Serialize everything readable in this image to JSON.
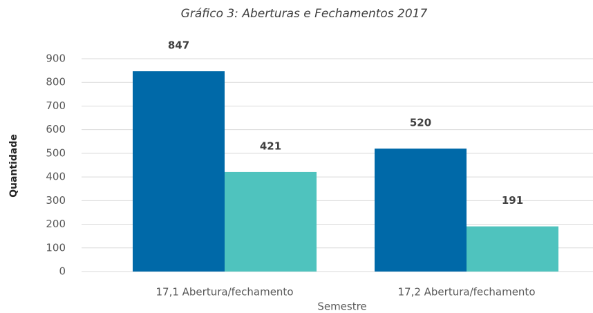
{
  "chart_data": {
    "type": "bar",
    "title": "Gráfico 3: Aberturas e Fechamentos 2017",
    "x_label": "Semestre",
    "y_label": "Quantidade",
    "categories": [
      "17,1 Abertura/fechamento",
      "17,2 Abertura/fechamento"
    ],
    "series": [
      {
        "color": "#0069a8",
        "values": [
          847,
          520
        ]
      },
      {
        "color": "#4fc3be",
        "values": [
          421,
          191
        ]
      }
    ],
    "ylim": [
      0,
      900
    ],
    "yticks": [
      0,
      100,
      200,
      300,
      400,
      500,
      600,
      700,
      800,
      900
    ],
    "grid": true
  }
}
